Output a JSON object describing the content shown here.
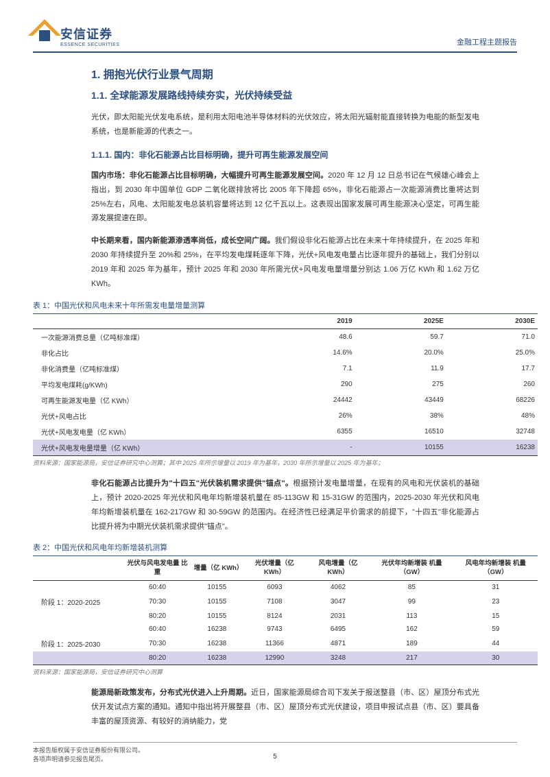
{
  "header": {
    "logo_cn": "安信证券",
    "logo_en": "ESSENCE SECURITIES",
    "report_type": "金融工程主题报告"
  },
  "section1": {
    "h1": "1. 拥抱光伏行业景气周期",
    "h2": "1.1. 全球能源发展路线持续夯实，光伏持续受益",
    "p1": "光伏，即太阳能光伏发电系统，是利用太阳电池半导体材料的光伏效应，将太阳光辐射能直接转换为电能的新型发电系统，也是新能源的代表之一。",
    "h3": "1.1.1. 国内：非化石能源占比目标明确，提升可再生能源发展空间",
    "p2_bold": "国内市场：非化石能源占比目标明确，大幅提升可再生能源发展空间。",
    "p2": "2020 年 12 月 12 日总书记在气候雄心峰会上指出，到 2030 年中国单位 GDP 二氧化碳排放将比 2005 年下降超 65%，非化石能源占一次能源消费比重将达到 25%左右，风电、太阳能发电总装机容量将达到 12 亿千瓦以上。这表现出国家发展可再生能源决心坚定，可再生能源发展提速在即。",
    "p3_bold": "中长期来看，国内新能源渗透率尚低，成长空间广阔。",
    "p3": "我们假设非化石能源占比在未来十年持续提升，在 2025 年和 2030 年持续提升至 20%和 25%，在平均发电煤耗逐年下降，光伏+风电发电量占比逐年提升的基础上，我们分别以 2019 年和 2025 年为基年，预计 2025 年和 2030 年所需光伏+风电发电量增量分别达 1.06 万亿 KWh 和 1.62 万亿 KWh。"
  },
  "table1": {
    "title": "表 1：中国光伏和风电未来十年所需发电量增量测算",
    "columns": [
      "",
      "2019",
      "2025E",
      "2030E"
    ],
    "rows": [
      {
        "label": "一次能源消费总量（亿吨标准煤）",
        "v": [
          "48.6",
          "59.7",
          "71.0"
        ]
      },
      {
        "label": "非化占比",
        "v": [
          "14.6%",
          "20.0%",
          "25.0%"
        ]
      },
      {
        "label": "非化消费量（亿吨标准煤）",
        "v": [
          "7.1",
          "11.9",
          "17.7"
        ]
      },
      {
        "label": "平均发电煤耗(g/KWh)",
        "v": [
          "290",
          "275",
          "260"
        ]
      },
      {
        "label": "可再生能源发电量（亿 KWh）",
        "v": [
          "24442",
          "43449",
          "68226"
        ]
      },
      {
        "label": "光伏+风电占比",
        "v": [
          "26%",
          "38%",
          "48%"
        ]
      },
      {
        "label": "光伏+风电发电量（亿 KWh）",
        "v": [
          "6355",
          "16510",
          "32748"
        ]
      },
      {
        "label": "光伏+风电发电量增量（亿 KWh）",
        "v": [
          "-",
          "10155",
          "16238"
        ],
        "hl": true
      }
    ],
    "source": "资料来源：国家能源局，安信证券研究中心测算；其中 2025 年所示增量以 2019 年为基年，2030 年所示增量以 2025 年为基年；"
  },
  "para_mid": {
    "bold": "非化石能源占比提升为\"十四五\"光伏装机需求提供\"锚点\"。",
    "text": "根据预计发电量增量，在现有的风电和光伏装机的基础上，预计 2020-2025 年光伏和风电年均新增装机量在 85-113GW 和 15-31GW 的范围内，2025-2030 年光伏和风电年均新增装机量在 162-217GW 和 30-59GW 的范围内。在经济性已经满足平价需求的前提下，\"十四五\"非化能源占比提升将为中期光伏装机需求提供\"锚点\"。"
  },
  "table2": {
    "title": "表 2：中国光伏和风电年均新增装机测算",
    "columns": [
      "",
      "光伏与风电发电量\n比重",
      "增量（亿 KWh）",
      "光伏增量（亿\nKWh）",
      "风电增量（亿\nKWh）",
      "光伏年均新增装\n机量（GW）",
      "风电年均新增装\n机量（GW）"
    ],
    "rows": [
      {
        "label": "",
        "v": [
          "60:40",
          "10155",
          "6093",
          "4062",
          "85",
          "31"
        ]
      },
      {
        "label": "阶段 1：2020-2025",
        "v": [
          "70:30",
          "10155",
          "7108",
          "3047",
          "99",
          "23"
        ]
      },
      {
        "label": "",
        "v": [
          "80:20",
          "10155",
          "8124",
          "2031",
          "113",
          "15"
        ]
      },
      {
        "label": "",
        "v": [
          "60:40",
          "16238",
          "9743",
          "6495",
          "162",
          "59"
        ]
      },
      {
        "label": "阶段 1：2025-2030",
        "v": [
          "70:30",
          "16238",
          "11366",
          "4871",
          "189",
          "44"
        ]
      },
      {
        "label": "",
        "v": [
          "80:20",
          "16238",
          "12990",
          "3248",
          "217",
          "30"
        ],
        "hl": true
      }
    ],
    "source": "资料来源：国家能源局，安信证券研究中心测算"
  },
  "para_end": {
    "bold": "能源局新政策发布，分布式光伏进入上升周期。",
    "text": "近日，国家能源局综合司下发关于报送整县（市、区）屋顶分布式光伏开发试点方案的通知。通知中指出将开展整县（市、区）屋顶分布式光伏建设，项目申报试点县（市、区）要具备丰富的屋顶资源、有较好的消纳能力，党"
  },
  "footer": {
    "line1": "本报告版权属于安信证券股份有限公司。",
    "line2": "各项声明请参见报告尾页。",
    "page": "5"
  },
  "styling": {
    "primary_color": "#2c4f82",
    "accent_color": "#e8a02f",
    "highlight_bg": "#d5d3ea",
    "body_font_size": 11,
    "h1_font_size": 16,
    "h2_font_size": 14,
    "table_font_size": 10
  }
}
